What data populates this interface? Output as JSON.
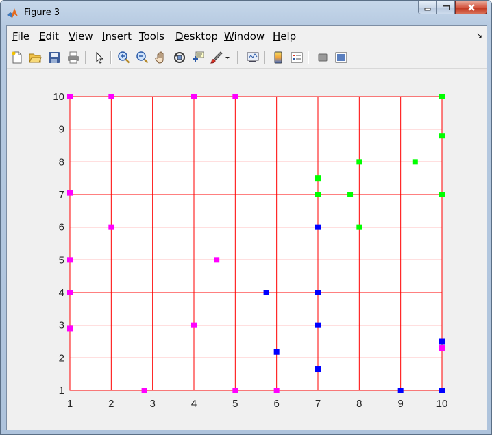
{
  "window": {
    "title": "Figure 3"
  },
  "menubar": {
    "items": [
      {
        "key": "file",
        "mnemonic": "F",
        "rest": "ile"
      },
      {
        "key": "edit",
        "mnemonic": "E",
        "rest": "dit"
      },
      {
        "key": "view",
        "mnemonic": "V",
        "rest": "iew"
      },
      {
        "key": "insert",
        "mnemonic": "I",
        "rest": "nsert"
      },
      {
        "key": "tools",
        "mnemonic": "T",
        "rest": "ools"
      },
      {
        "key": "desktop",
        "mnemonic": "D",
        "rest": "esktop"
      },
      {
        "key": "window",
        "mnemonic": "W",
        "rest": "indow"
      },
      {
        "key": "help",
        "mnemonic": "H",
        "rest": "elp"
      }
    ]
  },
  "toolbar": {
    "icons": [
      "new-figure-icon",
      "open-file-icon",
      "save-figure-icon",
      "print-figure-icon",
      "edit-plot-icon",
      "zoom-in-icon",
      "zoom-out-icon",
      "pan-icon",
      "rotate-3d-icon",
      "data-cursor-icon",
      "brush-icon",
      "link-plot-icon",
      "insert-colorbar-icon",
      "insert-legend-icon",
      "hide-plot-tools-icon",
      "show-plot-tools-icon"
    ]
  },
  "colors": {
    "grid": "#ff0000",
    "magenta": "#ff00ff",
    "green": "#00ff00",
    "blue": "#0000ff"
  },
  "chart_data": {
    "type": "scatter",
    "title": "",
    "xlabel": "",
    "ylabel": "",
    "xlim": [
      1,
      10
    ],
    "ylim": [
      1,
      10
    ],
    "xticks": [
      1,
      2,
      3,
      4,
      5,
      6,
      7,
      8,
      9,
      10
    ],
    "yticks": [
      1,
      2,
      3,
      4,
      5,
      6,
      7,
      8,
      9,
      10
    ],
    "grid": true,
    "series": [
      {
        "color": "#ff00ff",
        "marker": "square",
        "points": [
          [
            1,
            10
          ],
          [
            2,
            10
          ],
          [
            4,
            10
          ],
          [
            5,
            10
          ],
          [
            1,
            7.05
          ],
          [
            2,
            6
          ],
          [
            1,
            5
          ],
          [
            4.55,
            5
          ],
          [
            1,
            4
          ],
          [
            4,
            3
          ],
          [
            1,
            2.9
          ],
          [
            2.8,
            1
          ],
          [
            5,
            1
          ],
          [
            6,
            1
          ],
          [
            10,
            2.3
          ]
        ]
      },
      {
        "color": "#00ff00",
        "marker": "square",
        "points": [
          [
            10,
            10
          ],
          [
            10,
            8.8
          ],
          [
            8,
            8
          ],
          [
            9.35,
            8
          ],
          [
            7,
            7.5
          ],
          [
            7,
            7
          ],
          [
            7.78,
            7
          ],
          [
            10,
            7
          ],
          [
            8,
            6
          ]
        ]
      },
      {
        "color": "#0000ff",
        "marker": "square",
        "points": [
          [
            7,
            6
          ],
          [
            5.75,
            4
          ],
          [
            7,
            4
          ],
          [
            7,
            3
          ],
          [
            10,
            2.5
          ],
          [
            6,
            2.18
          ],
          [
            7,
            1.65
          ],
          [
            9,
            1
          ],
          [
            10,
            1
          ]
        ]
      }
    ]
  }
}
